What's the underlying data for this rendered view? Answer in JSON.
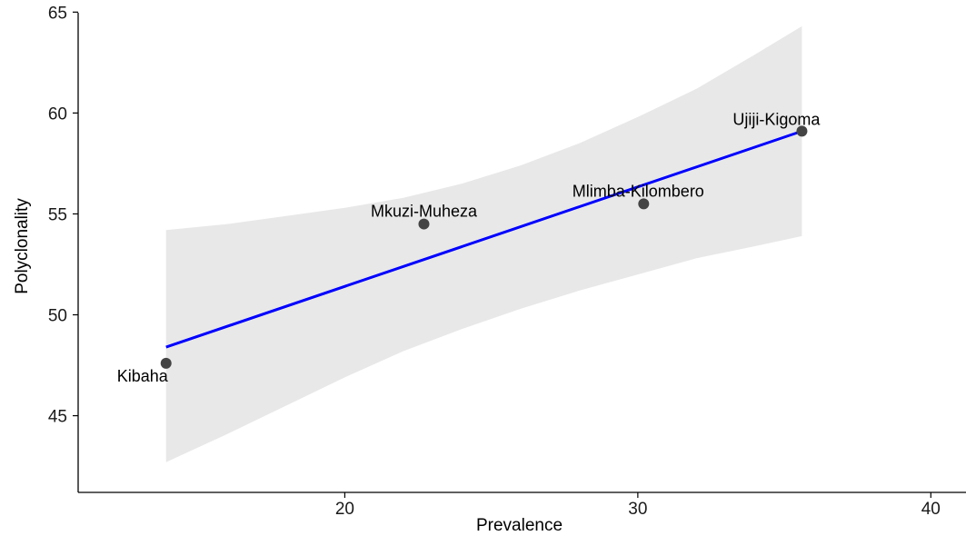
{
  "chart_data": {
    "type": "scatter",
    "title": "",
    "xlabel": "Prevalence",
    "ylabel": "Polyclonality",
    "xlim": [
      10.9,
      41.2
    ],
    "ylim": [
      41.2,
      65.6
    ],
    "xticks": [
      20,
      30,
      40
    ],
    "yticks": [
      45,
      50,
      55,
      60,
      65
    ],
    "grid": false,
    "points": [
      {
        "label": "Kibaha",
        "x": 13.9,
        "y": 47.6
      },
      {
        "label": "Mkuzi-Muheza",
        "x": 22.7,
        "y": 54.5
      },
      {
        "label": "Mlimba-Kilombero",
        "x": 30.2,
        "y": 55.5
      },
      {
        "label": "Ujiji-Kigoma",
        "x": 35.6,
        "y": 59.1
      }
    ],
    "fit_line": {
      "x": [
        13.9,
        35.6
      ],
      "y": [
        48.4,
        59.1
      ]
    },
    "confidence_band": {
      "x": [
        13.9,
        16,
        18,
        20,
        22,
        24,
        26,
        28,
        30,
        32,
        34,
        35.6
      ],
      "upper": [
        54.2,
        54.5,
        54.9,
        55.3,
        55.8,
        56.5,
        57.4,
        58.5,
        59.8,
        61.2,
        62.9,
        64.3
      ],
      "lower": [
        42.7,
        44.1,
        45.5,
        46.9,
        48.2,
        49.3,
        50.3,
        51.2,
        52.0,
        52.8,
        53.4,
        53.9
      ]
    },
    "colors": {
      "fit": "#0000ff",
      "band": "#e8e8e8",
      "point": "#444444",
      "axis": "#000000"
    }
  }
}
